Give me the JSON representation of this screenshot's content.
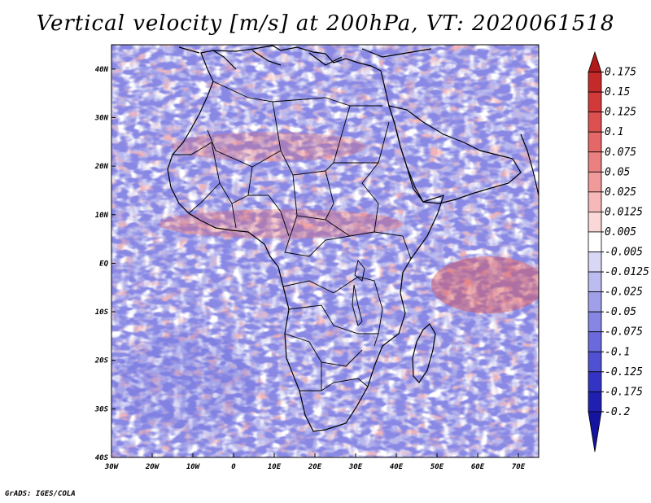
{
  "title": "Vertical velocity [m/s] at 200hPa, VT: 2020061518",
  "credit": "GrADS: IGES/COLA",
  "map": {
    "lon_range": [
      -30,
      75
    ],
    "lat_range": [
      -40,
      45
    ],
    "lat_ticks": [
      {
        "value": 40,
        "label": "40N"
      },
      {
        "value": 30,
        "label": "30N"
      },
      {
        "value": 20,
        "label": "20N"
      },
      {
        "value": 10,
        "label": "10N"
      },
      {
        "value": 0,
        "label": "EQ"
      },
      {
        "value": -10,
        "label": "10S"
      },
      {
        "value": -20,
        "label": "20S"
      },
      {
        "value": -30,
        "label": "30S"
      },
      {
        "value": -40,
        "label": "40S"
      }
    ],
    "lon_ticks": [
      {
        "value": -30,
        "label": "30W"
      },
      {
        "value": -20,
        "label": "20W"
      },
      {
        "value": -10,
        "label": "10W"
      },
      {
        "value": 0,
        "label": "0"
      },
      {
        "value": 10,
        "label": "10E"
      },
      {
        "value": 20,
        "label": "20E"
      },
      {
        "value": 30,
        "label": "30E"
      },
      {
        "value": 40,
        "label": "40E"
      },
      {
        "value": 50,
        "label": "50E"
      },
      {
        "value": 60,
        "label": "60E"
      },
      {
        "value": 70,
        "label": "70E"
      }
    ]
  },
  "colorbar": {
    "labels": [
      "0.175",
      "0.15",
      "0.125",
      "0.1",
      "0.075",
      "0.05",
      "0.025",
      "0.0125",
      "0.005",
      "-0.005",
      "-0.0125",
      "-0.025",
      "-0.05",
      "-0.075",
      "-0.1",
      "-0.125",
      "-0.175",
      "-0.2"
    ],
    "colors": [
      "#b01a1a",
      "#c42a2a",
      "#d23a3a",
      "#dc5050",
      "#e46868",
      "#ea8080",
      "#f19a9a",
      "#f6b8b8",
      "#fad8d8",
      "#ffffff",
      "#d8d8f6",
      "#bcbcf0",
      "#a0a0ea",
      "#8686e4",
      "#6a6adc",
      "#5050d2",
      "#3434c4",
      "#2020b0",
      "#1414a0"
    ]
  },
  "colors": {
    "background": "#ffffff",
    "field_base": "#b9b9ee",
    "positive": "#e87a7a",
    "negative": "#8a8ae2",
    "coast": "#000000"
  }
}
